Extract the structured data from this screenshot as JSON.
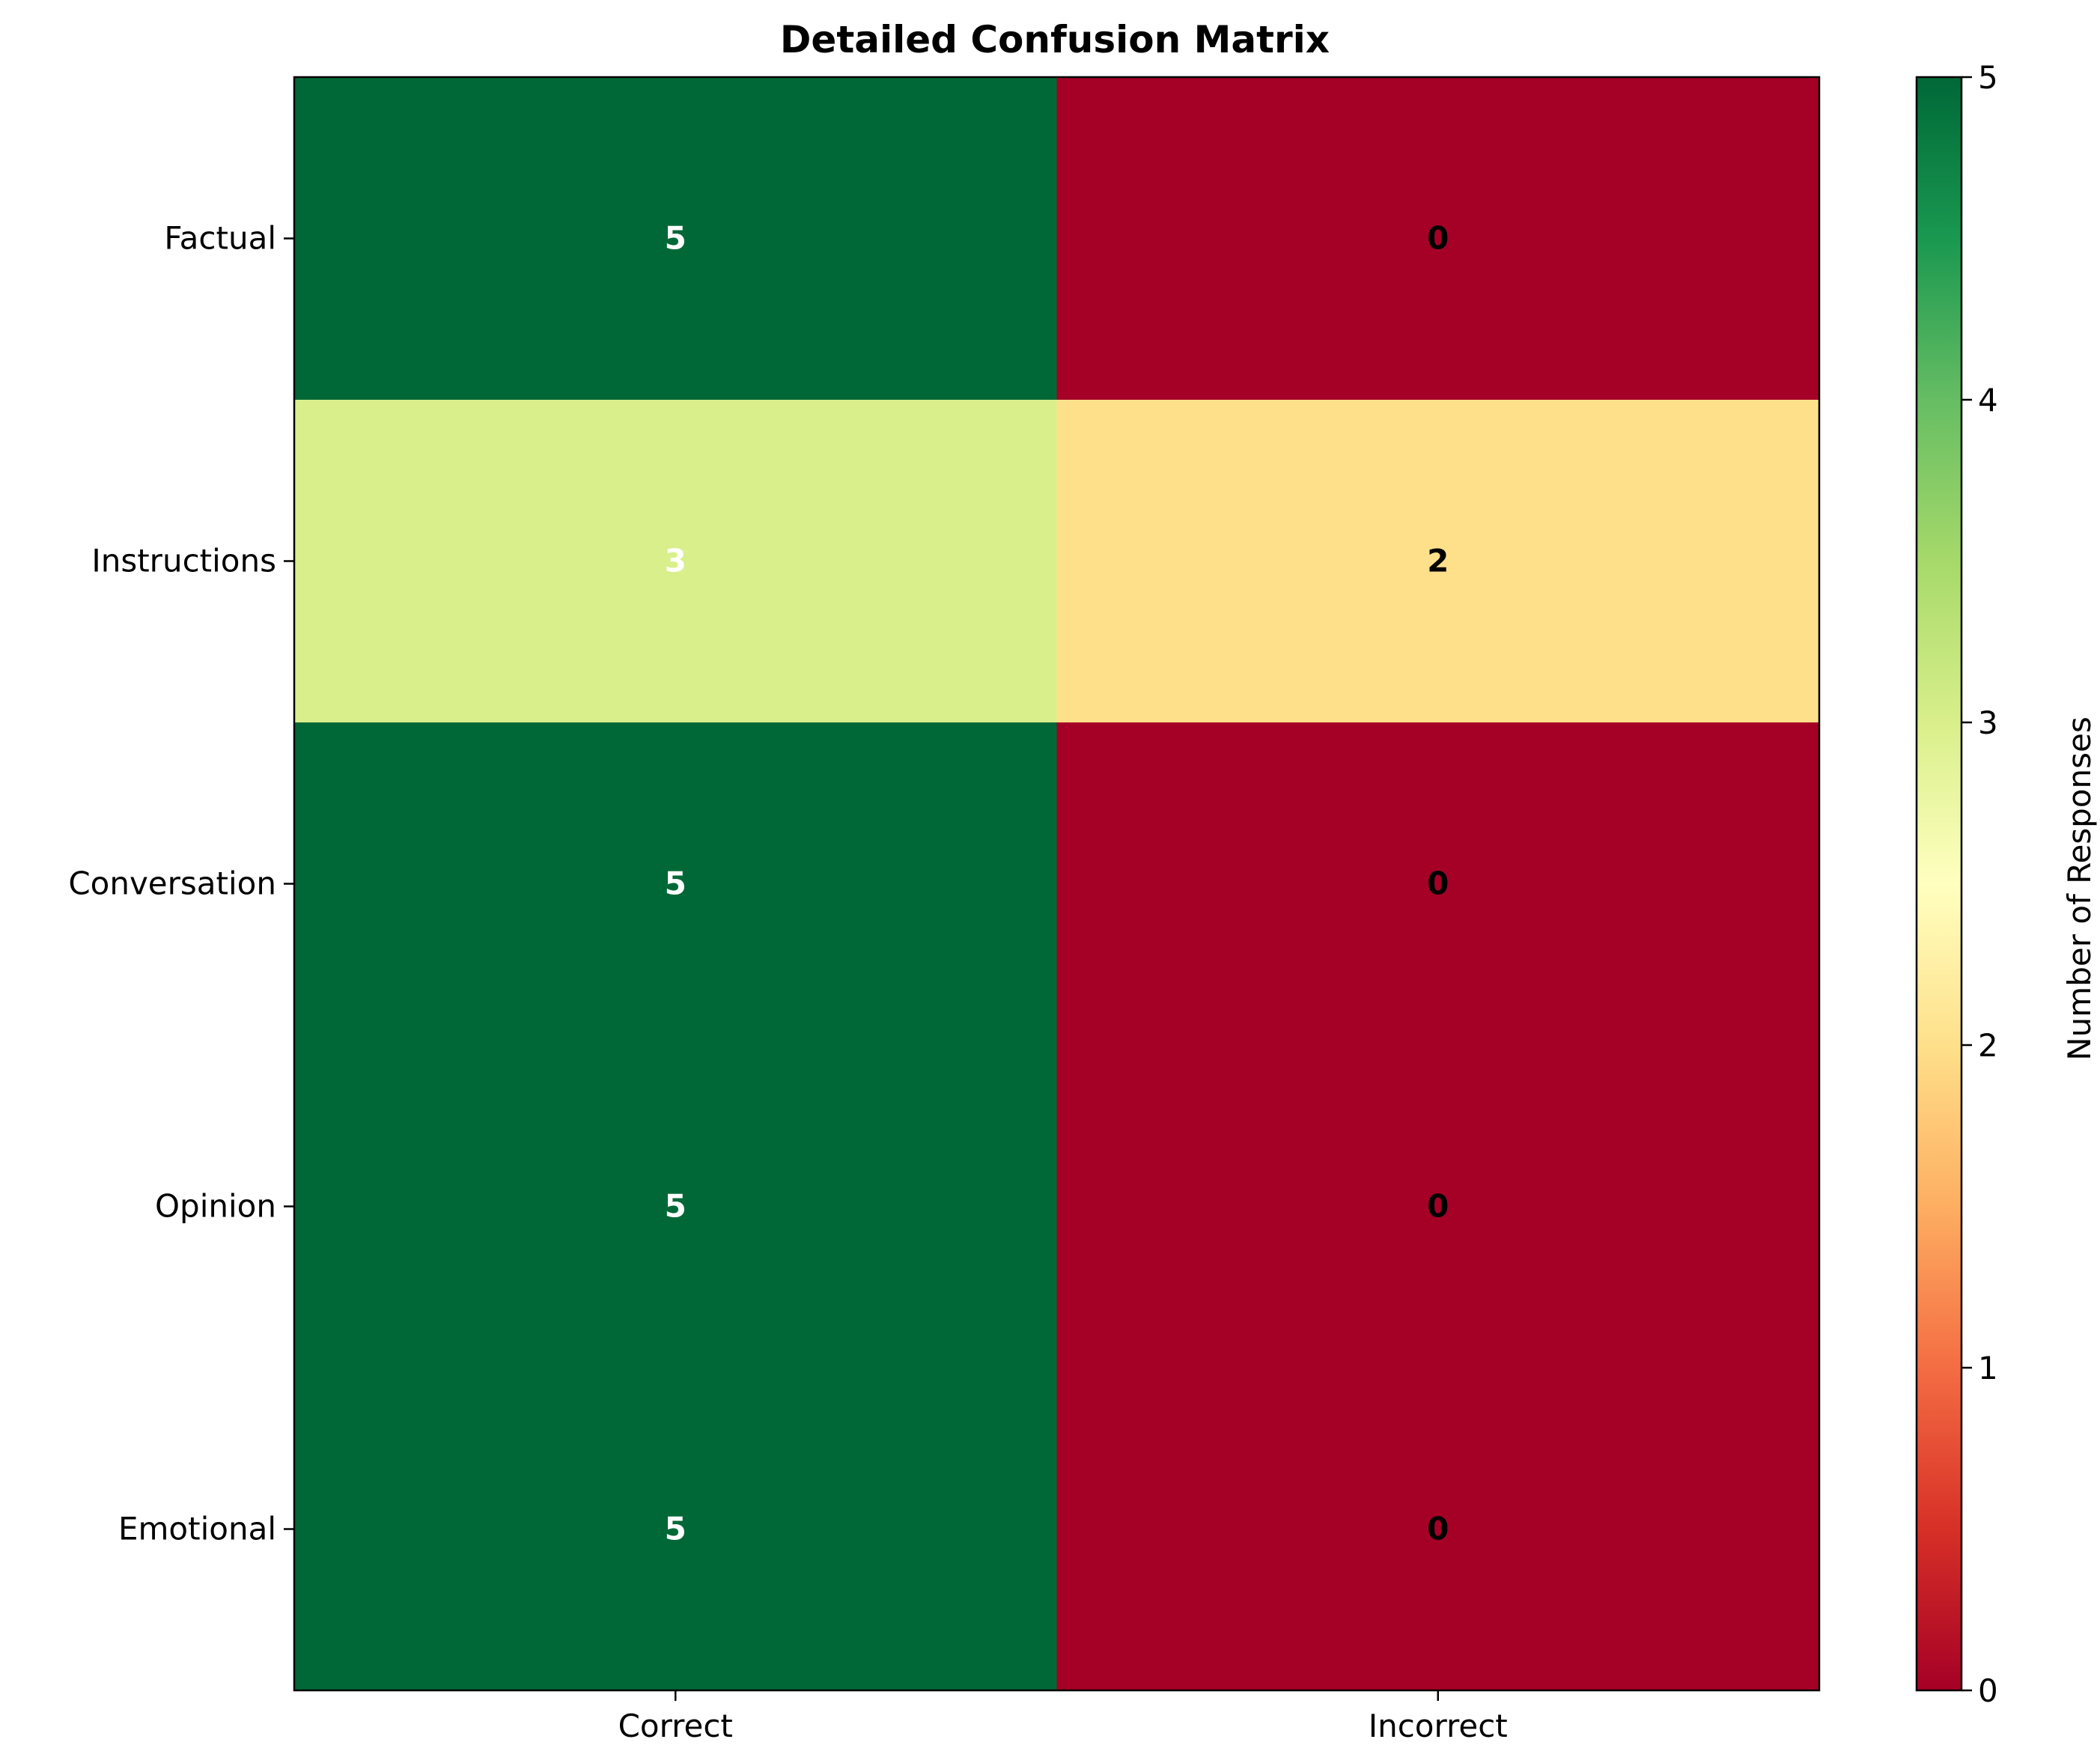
{
  "chart_data": {
    "type": "heatmap",
    "title": "Detailed Confusion Matrix",
    "rows": [
      "Factual",
      "Instructions",
      "Conversation",
      "Opinion",
      "Emotional"
    ],
    "columns": [
      "Correct",
      "Incorrect"
    ],
    "values": [
      [
        5,
        0
      ],
      [
        3,
        2
      ],
      [
        5,
        0
      ],
      [
        5,
        0
      ],
      [
        5,
        0
      ]
    ],
    "colorbar": {
      "label": "Number of Responses",
      "range": [
        0,
        5
      ],
      "ticks": [
        0,
        1,
        2,
        3,
        4,
        5
      ],
      "colormap": "RdYlGn"
    },
    "annotation_colors": {
      "high": "#ffffff",
      "low": "#000000"
    }
  }
}
